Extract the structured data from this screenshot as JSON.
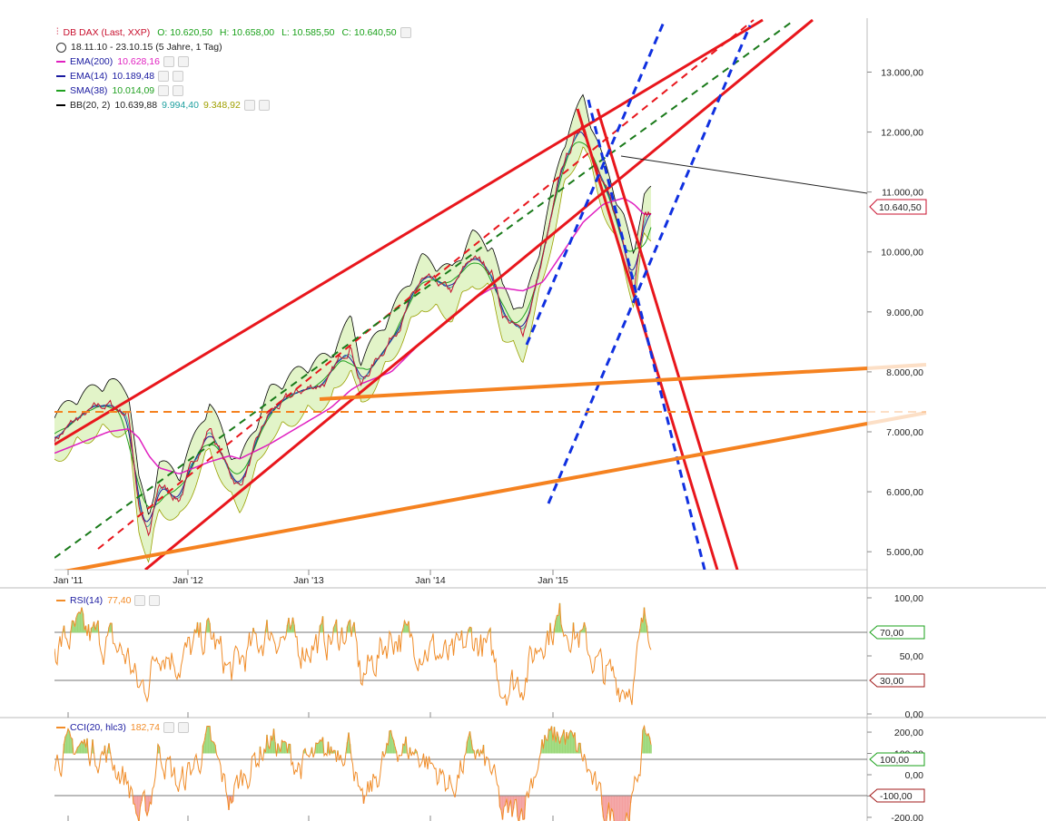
{
  "header": {
    "symbol": "DB DAX (Last, XXP)",
    "ohlc": {
      "o": "O: 10.620,50",
      "h": "H: 10.658,00",
      "l": "L: 10.585,50",
      "c": "C: 10.640,50"
    },
    "range": "18.11.10 - 23.10.15 (5 Jahre, 1 Tag)"
  },
  "indicators": [
    {
      "id": "ema200",
      "label": "EMA(200)",
      "value": "10.628,16",
      "color": "#e020c0"
    },
    {
      "id": "ema14",
      "label": "EMA(14)",
      "value": "10.189,48",
      "color": "#1a1aa0"
    },
    {
      "id": "sma38",
      "label": "SMA(38)",
      "value": "10.014,09",
      "color": "#20a020"
    },
    {
      "id": "bb",
      "label": "BB(20, 2)",
      "value": "10.639,88",
      "value2": "9.994,40",
      "value3": "9.348,92",
      "color": "#000000",
      "color2": "#20a0a0",
      "color3": "#a0a000"
    }
  ],
  "rsi": {
    "label": "RSI(14)",
    "value": "77,40",
    "levels": [
      "70,00",
      "30,00"
    ]
  },
  "cci": {
    "label": "CCI(20, hlc3)",
    "value": "182,74",
    "levels": [
      "100,00",
      "-100,00"
    ]
  },
  "price_tag": "10.640,50",
  "colors": {
    "price": "#c8102e",
    "trend_red": "#e8161c",
    "trend_blue": "#1030e0",
    "trend_orange": "#f58220",
    "trend_green": "#1a7a1a",
    "osc": "#f08c28"
  },
  "chart_data": [
    {
      "type": "line",
      "panel": "price",
      "title": "DB DAX (Last, XXP)",
      "x_ticks": [
        "Jan '11",
        "Jan '12",
        "Jan '13",
        "Jan '14",
        "Jan '15"
      ],
      "y_ticks": [
        "5.000,00",
        "6.000,00",
        "7.000,00",
        "8.000,00",
        "9.000,00",
        "10.000,00",
        "11.000,00",
        "12.000,00",
        "13.000,00"
      ],
      "ylim": [
        4700,
        13900
      ],
      "x": [
        "2010-11",
        "2011-02",
        "2011-05",
        "2011-07",
        "2011-08",
        "2011-09",
        "2011-10",
        "2011-12",
        "2012-03",
        "2012-05",
        "2012-06",
        "2012-09",
        "2012-12",
        "2013-03",
        "2013-05",
        "2013-06",
        "2013-09",
        "2013-12",
        "2014-03",
        "2014-05",
        "2014-07",
        "2014-08",
        "2014-10",
        "2014-12",
        "2015-02",
        "2015-04",
        "2015-06",
        "2015-08",
        "2015-09",
        "2015-10"
      ],
      "series": [
        {
          "name": "DB DAX (Last, XXP)",
          "values": [
            6800,
            7200,
            7450,
            7300,
            5800,
            5200,
            6100,
            5900,
            7100,
            6300,
            6100,
            7300,
            7650,
            7900,
            8500,
            7800,
            8600,
            9500,
            9300,
            9900,
            9700,
            9000,
            8600,
            9900,
            11400,
            12200,
            11100,
            10200,
            9500,
            10640
          ]
        },
        {
          "name": "EMA(200)",
          "values": [
            6600,
            6800,
            7000,
            7050,
            6900,
            6600,
            6400,
            6300,
            6500,
            6600,
            6550,
            6800,
            7100,
            7400,
            7700,
            7800,
            8000,
            8500,
            8900,
            9200,
            9400,
            9400,
            9350,
            9500,
            10000,
            10500,
            10800,
            10900,
            10800,
            10628
          ]
        }
      ]
    },
    {
      "type": "line",
      "panel": "rsi",
      "title": "RSI(14)",
      "y_ticks": [
        "100,00",
        "50,00",
        "0,00"
      ],
      "ylim": [
        0,
        100
      ],
      "series": [
        {
          "name": "RSI(14)",
          "values": [
            55,
            70,
            62,
            48,
            20,
            30,
            60,
            45,
            70,
            35,
            45,
            72,
            58,
            65,
            74,
            30,
            68,
            60,
            45,
            66,
            50,
            25,
            30,
            68,
            82,
            62,
            35,
            25,
            30,
            77
          ]
        }
      ]
    },
    {
      "type": "line",
      "panel": "cci",
      "title": "CCI(20, hlc3)",
      "y_ticks": [
        "200,00",
        "100,00",
        "0,00",
        "-100,00",
        "-200,00"
      ],
      "ylim": [
        -230,
        230
      ],
      "series": [
        {
          "name": "CCI(20, hlc3)",
          "values": [
            60,
            140,
            90,
            -40,
            -210,
            -150,
            130,
            -60,
            160,
            -120,
            -30,
            170,
            40,
            110,
            160,
            -180,
            150,
            90,
            -60,
            130,
            10,
            -200,
            -150,
            140,
            190,
            80,
            -170,
            -210,
            -120,
            183
          ]
        }
      ]
    }
  ]
}
